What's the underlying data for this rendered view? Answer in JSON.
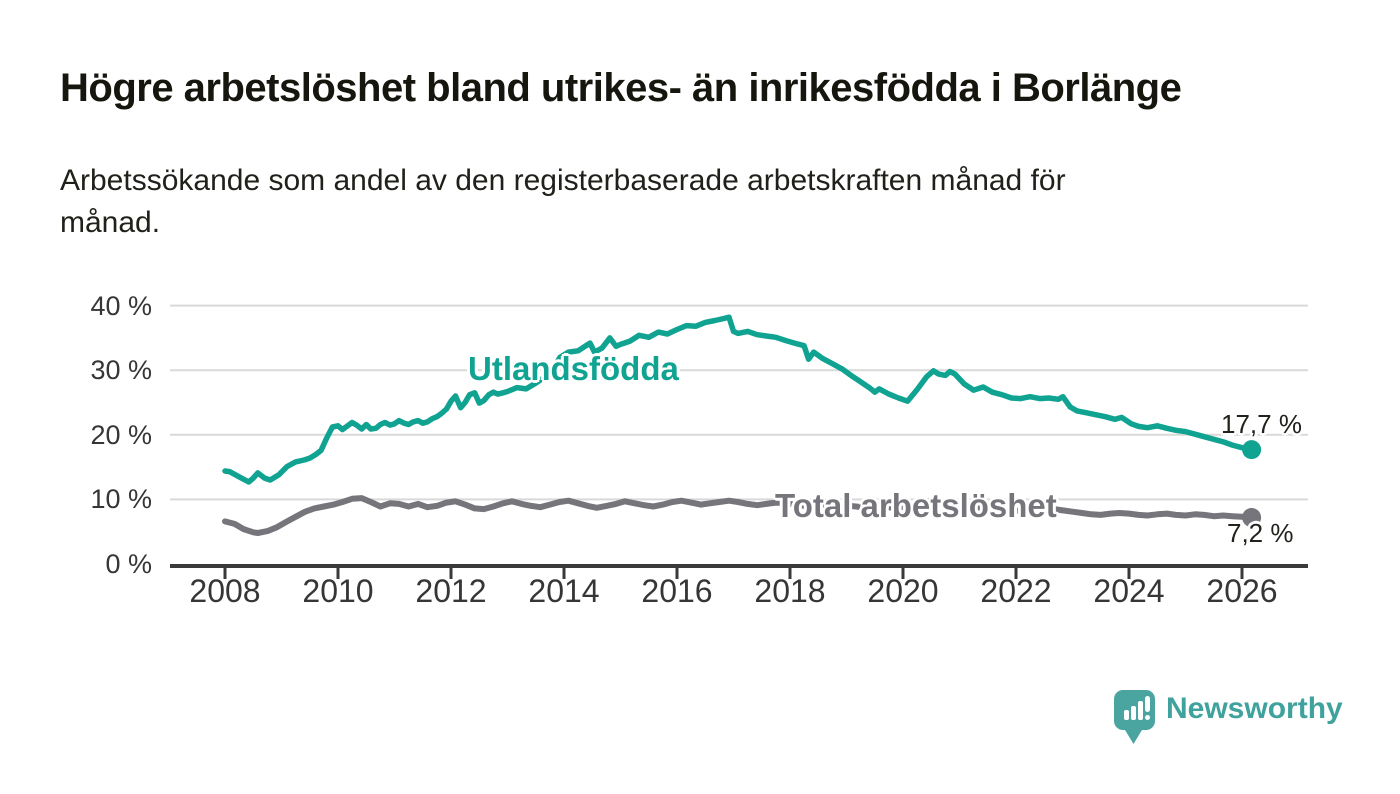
{
  "header": {
    "title": "Högre arbetslöshet bland utrikes- än inrikesfödda i Borlänge",
    "subtitle_lines": [
      "Arbetssökande som andel av den registerbaserade arbetskraften månad för",
      "månad."
    ]
  },
  "logo": {
    "name": "Newsworthy"
  },
  "colors": {
    "background": "#ffffff",
    "teal_line": "#10a392",
    "gray_line": "#76757b",
    "gridline": "#d9d9d9",
    "axis": "#3a3a3a",
    "title_text": "#16160f",
    "value_text": "#22221c",
    "logo_bubble": "#4aa5a0",
    "logo_text": "#3fa29d"
  },
  "chart_data": {
    "type": "line",
    "title": "Högre arbetslöshet bland utrikes- än inrikesfödda i Borlänge",
    "subtitle": "Arbetssökande som andel av den registerbaserade arbetskraften månad för månad.",
    "unit": "%",
    "x_range": [
      2008,
      2026.5
    ],
    "ylim": [
      0,
      40
    ],
    "grid": "horizontal",
    "legend": "inline-labels",
    "y_ticks": [
      {
        "value": 40,
        "label": "40 %"
      },
      {
        "value": 30,
        "label": "30 %"
      },
      {
        "value": 20,
        "label": "20 %"
      },
      {
        "value": 10,
        "label": "10 %"
      },
      {
        "value": 0,
        "label": "0 %"
      }
    ],
    "x_ticks": [
      {
        "value": 2008,
        "label": "2008"
      },
      {
        "value": 2010,
        "label": "2010"
      },
      {
        "value": 2012,
        "label": "2012"
      },
      {
        "value": 2014,
        "label": "2014"
      },
      {
        "value": 2016,
        "label": "2016"
      },
      {
        "value": 2018,
        "label": "2018"
      },
      {
        "value": 2020,
        "label": "2020"
      },
      {
        "value": 2022,
        "label": "2022"
      },
      {
        "value": 2024,
        "label": "2024"
      },
      {
        "value": 2026,
        "label": "2026"
      }
    ],
    "series": [
      {
        "name": "Utlandsfödda",
        "color": "#10a392",
        "end_label": "17,7 %",
        "end_value": 17.7,
        "points": [
          [
            2008.0,
            14.4
          ],
          [
            2008.08,
            14.3
          ],
          [
            2008.25,
            13.5
          ],
          [
            2008.42,
            12.7
          ],
          [
            2008.5,
            13.3
          ],
          [
            2008.58,
            14.1
          ],
          [
            2008.7,
            13.3
          ],
          [
            2008.8,
            13.0
          ],
          [
            2008.95,
            13.8
          ],
          [
            2009.1,
            15.1
          ],
          [
            2009.25,
            15.8
          ],
          [
            2009.4,
            16.1
          ],
          [
            2009.5,
            16.4
          ],
          [
            2009.6,
            16.9
          ],
          [
            2009.7,
            17.6
          ],
          [
            2009.8,
            19.5
          ],
          [
            2009.9,
            21.2
          ],
          [
            2010.0,
            21.4
          ],
          [
            2010.08,
            20.8
          ],
          [
            2010.17,
            21.4
          ],
          [
            2010.25,
            21.9
          ],
          [
            2010.33,
            21.5
          ],
          [
            2010.42,
            20.9
          ],
          [
            2010.5,
            21.6
          ],
          [
            2010.58,
            20.9
          ],
          [
            2010.67,
            21.0
          ],
          [
            2010.75,
            21.6
          ],
          [
            2010.83,
            21.9
          ],
          [
            2010.92,
            21.5
          ],
          [
            2011.0,
            21.7
          ],
          [
            2011.08,
            22.2
          ],
          [
            2011.17,
            21.8
          ],
          [
            2011.25,
            21.6
          ],
          [
            2011.33,
            22.0
          ],
          [
            2011.42,
            22.2
          ],
          [
            2011.5,
            21.8
          ],
          [
            2011.58,
            22.0
          ],
          [
            2011.67,
            22.5
          ],
          [
            2011.75,
            22.8
          ],
          [
            2011.83,
            23.3
          ],
          [
            2011.92,
            24.0
          ],
          [
            2012.0,
            25.2
          ],
          [
            2012.08,
            26.0
          ],
          [
            2012.17,
            24.2
          ],
          [
            2012.25,
            25.0
          ],
          [
            2012.33,
            26.2
          ],
          [
            2012.42,
            26.5
          ],
          [
            2012.5,
            24.9
          ],
          [
            2012.58,
            25.3
          ],
          [
            2012.67,
            26.2
          ],
          [
            2012.75,
            26.6
          ],
          [
            2012.83,
            26.3
          ],
          [
            2012.92,
            26.5
          ],
          [
            2013.0,
            26.7
          ],
          [
            2013.17,
            27.3
          ],
          [
            2013.33,
            27.1
          ],
          [
            2013.5,
            28.0
          ],
          [
            2013.67,
            29.0
          ],
          [
            2013.83,
            30.5
          ],
          [
            2013.93,
            32.0
          ],
          [
            2014.08,
            32.8
          ],
          [
            2014.25,
            33.0
          ],
          [
            2014.46,
            34.2
          ],
          [
            2014.54,
            32.8
          ],
          [
            2014.67,
            33.4
          ],
          [
            2014.81,
            35.0
          ],
          [
            2014.92,
            33.7
          ],
          [
            2015.0,
            34.0
          ],
          [
            2015.17,
            34.5
          ],
          [
            2015.33,
            35.4
          ],
          [
            2015.5,
            35.1
          ],
          [
            2015.67,
            35.9
          ],
          [
            2015.83,
            35.6
          ],
          [
            2016.0,
            36.3
          ],
          [
            2016.17,
            36.9
          ],
          [
            2016.33,
            36.8
          ],
          [
            2016.5,
            37.4
          ],
          [
            2016.67,
            37.7
          ],
          [
            2016.83,
            38.0
          ],
          [
            2016.92,
            38.2
          ],
          [
            2017.0,
            36.0
          ],
          [
            2017.08,
            35.7
          ],
          [
            2017.25,
            36.0
          ],
          [
            2017.42,
            35.5
          ],
          [
            2017.58,
            35.3
          ],
          [
            2017.75,
            35.1
          ],
          [
            2017.92,
            34.6
          ],
          [
            2018.08,
            34.2
          ],
          [
            2018.25,
            33.8
          ],
          [
            2018.33,
            31.7
          ],
          [
            2018.42,
            32.8
          ],
          [
            2018.58,
            31.8
          ],
          [
            2018.75,
            31.0
          ],
          [
            2018.92,
            30.2
          ],
          [
            2019.08,
            29.2
          ],
          [
            2019.25,
            28.2
          ],
          [
            2019.42,
            27.2
          ],
          [
            2019.5,
            26.6
          ],
          [
            2019.58,
            27.1
          ],
          [
            2019.75,
            26.3
          ],
          [
            2019.92,
            25.7
          ],
          [
            2020.08,
            25.2
          ],
          [
            2020.25,
            27.0
          ],
          [
            2020.42,
            29.0
          ],
          [
            2020.54,
            29.9
          ],
          [
            2020.63,
            29.4
          ],
          [
            2020.75,
            29.2
          ],
          [
            2020.83,
            29.8
          ],
          [
            2020.92,
            29.4
          ],
          [
            2021.08,
            27.9
          ],
          [
            2021.25,
            26.9
          ],
          [
            2021.42,
            27.4
          ],
          [
            2021.58,
            26.6
          ],
          [
            2021.75,
            26.2
          ],
          [
            2021.92,
            25.7
          ],
          [
            2022.08,
            25.6
          ],
          [
            2022.25,
            25.9
          ],
          [
            2022.42,
            25.6
          ],
          [
            2022.58,
            25.7
          ],
          [
            2022.75,
            25.5
          ],
          [
            2022.83,
            25.9
          ],
          [
            2022.96,
            24.3
          ],
          [
            2023.08,
            23.7
          ],
          [
            2023.25,
            23.4
          ],
          [
            2023.42,
            23.1
          ],
          [
            2023.58,
            22.8
          ],
          [
            2023.75,
            22.4
          ],
          [
            2023.87,
            22.7
          ],
          [
            2024.04,
            21.7
          ],
          [
            2024.17,
            21.3
          ],
          [
            2024.33,
            21.1
          ],
          [
            2024.5,
            21.4
          ],
          [
            2024.67,
            21.0
          ],
          [
            2024.83,
            20.7
          ],
          [
            2025.0,
            20.5
          ],
          [
            2025.17,
            20.1
          ],
          [
            2025.33,
            19.7
          ],
          [
            2025.5,
            19.3
          ],
          [
            2025.67,
            18.9
          ],
          [
            2025.83,
            18.4
          ],
          [
            2026.0,
            18.0
          ],
          [
            2026.17,
            17.7
          ]
        ]
      },
      {
        "name": "Total arbetslöshet",
        "color": "#76757b",
        "end_label": "7,2 %",
        "end_value": 7.2,
        "points": [
          [
            2008.0,
            6.6
          ],
          [
            2008.17,
            6.2
          ],
          [
            2008.33,
            5.4
          ],
          [
            2008.5,
            4.9
          ],
          [
            2008.58,
            4.8
          ],
          [
            2008.75,
            5.1
          ],
          [
            2008.92,
            5.7
          ],
          [
            2009.08,
            6.5
          ],
          [
            2009.25,
            7.3
          ],
          [
            2009.42,
            8.1
          ],
          [
            2009.58,
            8.6
          ],
          [
            2009.75,
            8.9
          ],
          [
            2009.92,
            9.2
          ],
          [
            2010.08,
            9.6
          ],
          [
            2010.25,
            10.1
          ],
          [
            2010.42,
            10.2
          ],
          [
            2010.58,
            9.6
          ],
          [
            2010.75,
            8.9
          ],
          [
            2010.92,
            9.4
          ],
          [
            2011.08,
            9.3
          ],
          [
            2011.25,
            8.9
          ],
          [
            2011.42,
            9.3
          ],
          [
            2011.58,
            8.8
          ],
          [
            2011.75,
            9.0
          ],
          [
            2011.92,
            9.5
          ],
          [
            2012.08,
            9.7
          ],
          [
            2012.25,
            9.2
          ],
          [
            2012.42,
            8.6
          ],
          [
            2012.58,
            8.5
          ],
          [
            2012.75,
            8.9
          ],
          [
            2012.92,
            9.4
          ],
          [
            2013.08,
            9.7
          ],
          [
            2013.25,
            9.3
          ],
          [
            2013.42,
            9.0
          ],
          [
            2013.58,
            8.8
          ],
          [
            2013.75,
            9.2
          ],
          [
            2013.92,
            9.6
          ],
          [
            2014.08,
            9.8
          ],
          [
            2014.25,
            9.4
          ],
          [
            2014.42,
            9.0
          ],
          [
            2014.58,
            8.7
          ],
          [
            2014.75,
            9.0
          ],
          [
            2014.92,
            9.3
          ],
          [
            2015.08,
            9.7
          ],
          [
            2015.25,
            9.4
          ],
          [
            2015.42,
            9.1
          ],
          [
            2015.58,
            8.9
          ],
          [
            2015.75,
            9.2
          ],
          [
            2015.92,
            9.6
          ],
          [
            2016.08,
            9.8
          ],
          [
            2016.25,
            9.5
          ],
          [
            2016.42,
            9.2
          ],
          [
            2016.58,
            9.4
          ],
          [
            2016.75,
            9.6
          ],
          [
            2016.92,
            9.8
          ],
          [
            2017.08,
            9.6
          ],
          [
            2017.25,
            9.3
          ],
          [
            2017.42,
            9.1
          ],
          [
            2017.58,
            9.3
          ],
          [
            2017.75,
            9.5
          ],
          [
            2017.92,
            9.4
          ],
          [
            2018.17,
            9.1
          ],
          [
            2018.42,
            8.8
          ],
          [
            2018.67,
            9.0
          ],
          [
            2018.92,
            9.1
          ],
          [
            2019.17,
            8.9
          ],
          [
            2019.42,
            8.6
          ],
          [
            2019.67,
            8.8
          ],
          [
            2019.92,
            8.7
          ],
          [
            2020.17,
            9.2
          ],
          [
            2020.42,
            9.7
          ],
          [
            2020.67,
            9.6
          ],
          [
            2020.92,
            9.2
          ],
          [
            2021.17,
            8.9
          ],
          [
            2021.42,
            8.7
          ],
          [
            2021.67,
            8.5
          ],
          [
            2021.92,
            8.3
          ],
          [
            2022.17,
            8.2
          ],
          [
            2022.42,
            8.4
          ],
          [
            2022.67,
            8.5
          ],
          [
            2022.83,
            8.3
          ],
          [
            2023.0,
            8.1
          ],
          [
            2023.17,
            7.9
          ],
          [
            2023.33,
            7.7
          ],
          [
            2023.5,
            7.6
          ],
          [
            2023.67,
            7.8
          ],
          [
            2023.83,
            7.9
          ],
          [
            2024.0,
            7.8
          ],
          [
            2024.17,
            7.6
          ],
          [
            2024.33,
            7.5
          ],
          [
            2024.5,
            7.7
          ],
          [
            2024.67,
            7.8
          ],
          [
            2024.83,
            7.6
          ],
          [
            2025.0,
            7.5
          ],
          [
            2025.17,
            7.7
          ],
          [
            2025.33,
            7.6
          ],
          [
            2025.5,
            7.4
          ],
          [
            2025.67,
            7.5
          ],
          [
            2025.83,
            7.4
          ],
          [
            2026.0,
            7.3
          ],
          [
            2026.17,
            7.2
          ]
        ]
      }
    ]
  }
}
